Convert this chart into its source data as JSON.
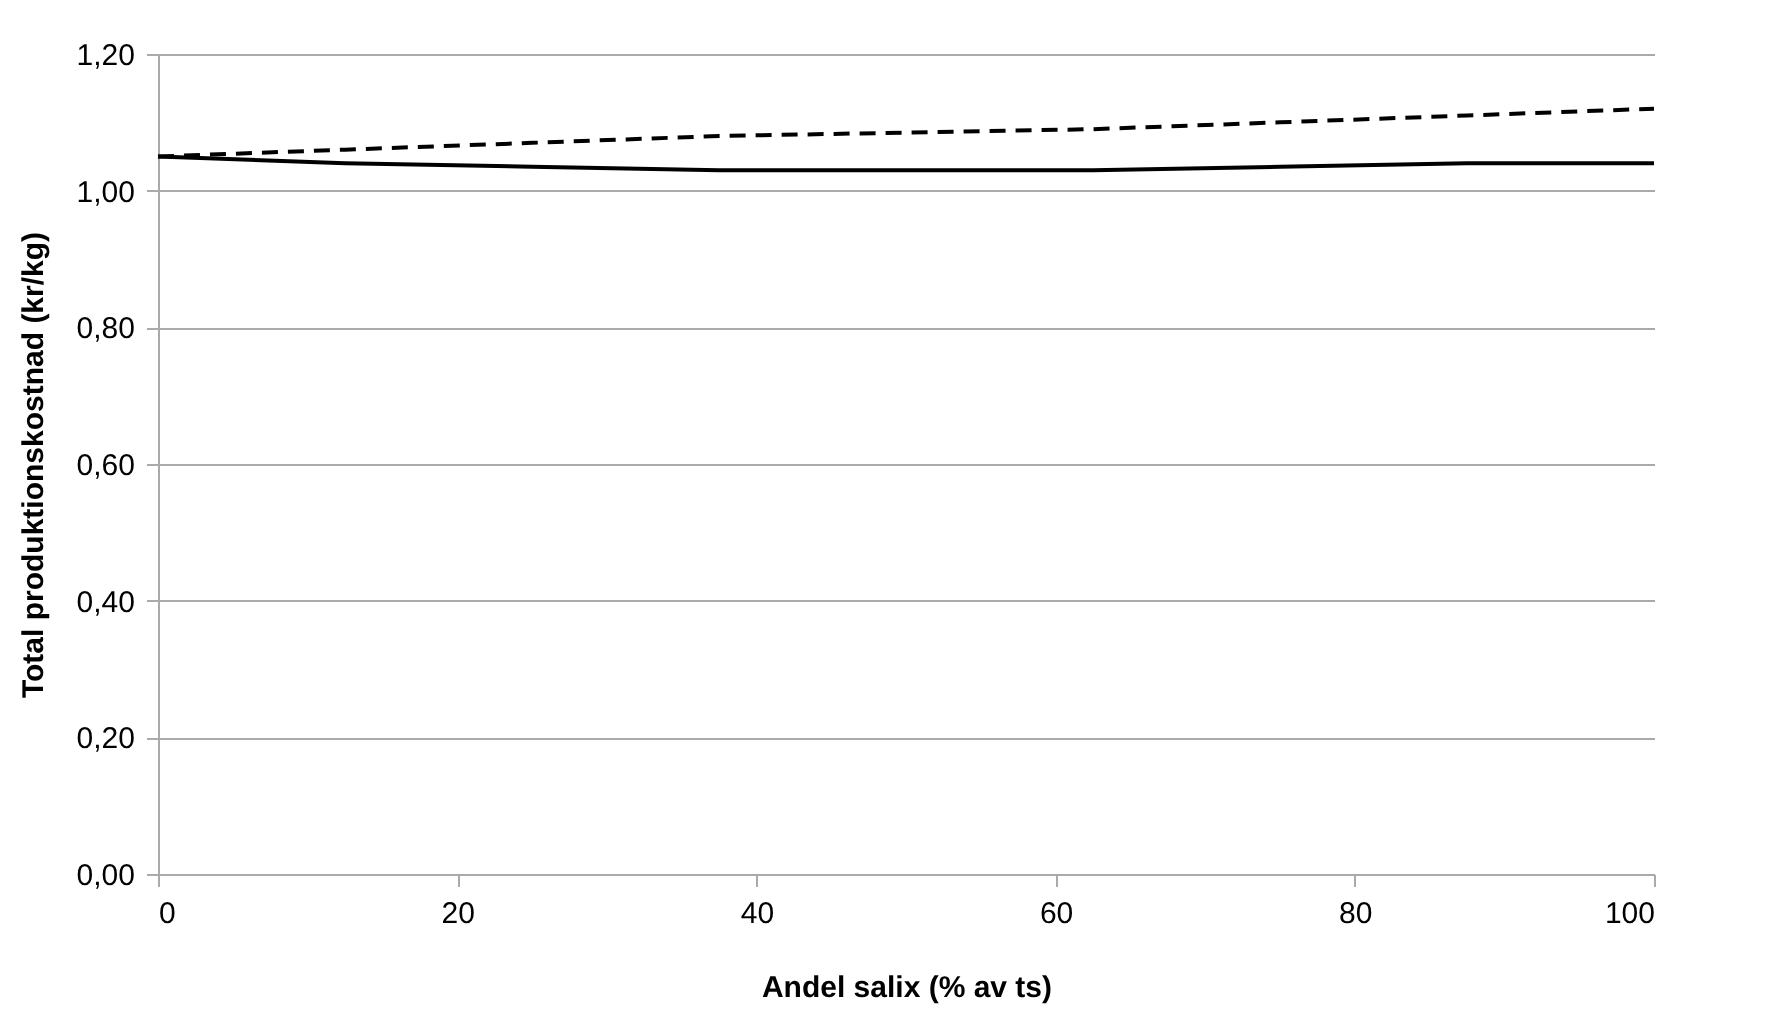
{
  "chart_data": {
    "type": "line",
    "xlabel": "Andel salix (% av ts)",
    "ylabel": "Total produktionskostnad (kr/kg)",
    "x": [
      0,
      12.5,
      25,
      37.5,
      50,
      62.5,
      75,
      87.5,
      100
    ],
    "series": [
      {
        "color": "#000000",
        "line_style": "solid",
        "values": [
          1.05,
          1.04,
          1.035,
          1.03,
          1.03,
          1.03,
          1.035,
          1.04,
          1.04
        ]
      },
      {
        "color": "#000000",
        "line_style": "dashed",
        "values": [
          1.05,
          1.06,
          1.07,
          1.08,
          1.085,
          1.09,
          1.1,
          1.11,
          1.12
        ]
      }
    ],
    "xlim": [
      0,
      100
    ],
    "xticks": [
      0,
      20,
      40,
      60,
      80,
      100
    ],
    "ylim": [
      0,
      1.2
    ],
    "yticks": [
      {
        "value": 0,
        "label": "0,00"
      },
      {
        "value": 0.2,
        "label": "0,20"
      },
      {
        "value": 0.4,
        "label": "0,40"
      },
      {
        "value": 0.6,
        "label": "0,60"
      },
      {
        "value": 0.8,
        "label": "0,80"
      },
      {
        "value": 1,
        "label": "1,00"
      },
      {
        "value": 1.2,
        "label": "1,20"
      }
    ],
    "grid": "y",
    "marker": "none"
  }
}
